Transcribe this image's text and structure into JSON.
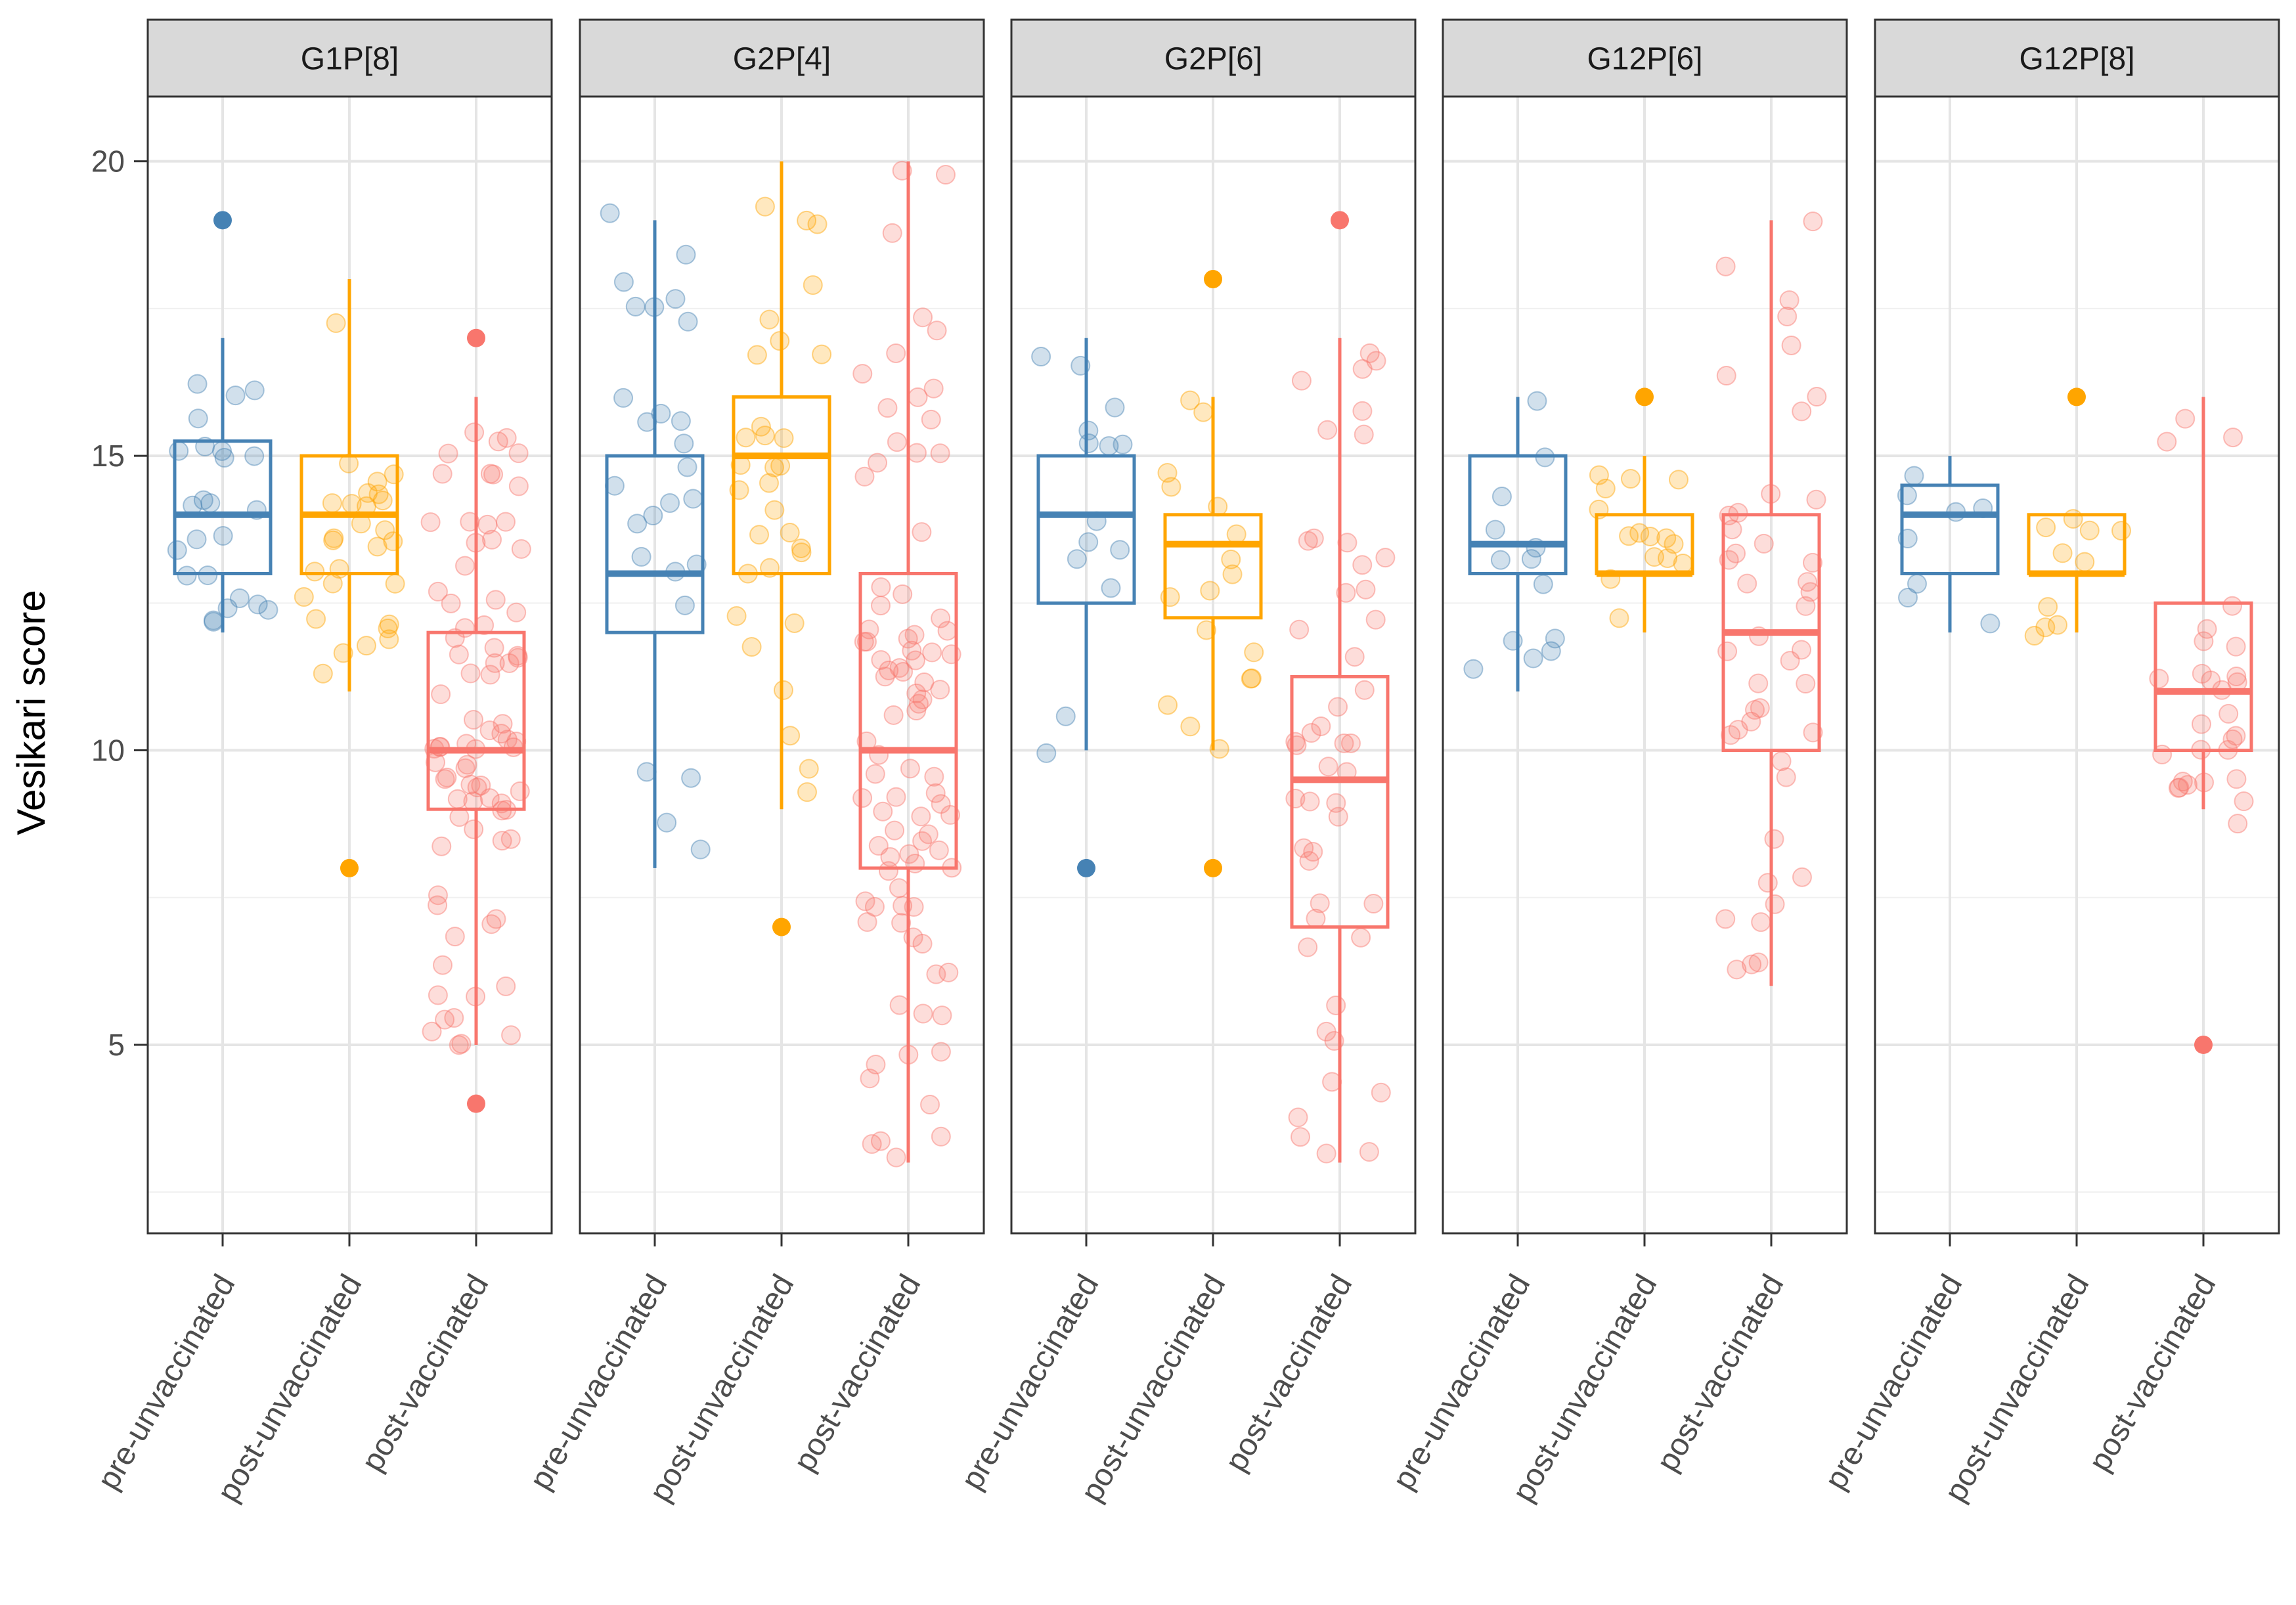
{
  "chart_data": {
    "type": "boxplot",
    "ylabel": "Vesikari score",
    "xlabel": "",
    "ylim": [
      1.8,
      21.1
    ],
    "y_ticks": [
      5,
      10,
      15,
      20
    ],
    "y_minor_ticks": [
      2.5,
      7.5,
      12.5,
      17.5
    ],
    "grid": true,
    "categories": [
      "pre-unvaccinated",
      "post-unvaccinated",
      "post-vaccinated"
    ],
    "colors": {
      "pre-unvaccinated": "#4682B4",
      "post-unvaccinated": "#FFA500",
      "post-vaccinated": "#F8766D"
    },
    "panels": [
      {
        "title": "G1P[8]",
        "boxes": [
          {
            "group": "pre-unvaccinated",
            "q1": 13,
            "median": 14,
            "q3": 15.25,
            "whisker_low": 12,
            "whisker_high": 17,
            "outliers": [
              19
            ]
          },
          {
            "group": "post-unvaccinated",
            "q1": 13,
            "median": 14,
            "q3": 15,
            "whisker_low": 11,
            "whisker_high": 18,
            "outliers": [
              8
            ]
          },
          {
            "group": "post-vaccinated",
            "q1": 9,
            "median": 10,
            "q3": 12,
            "whisker_low": 5,
            "whisker_high": 16,
            "outliers": [
              4,
              17
            ]
          }
        ]
      },
      {
        "title": "G2P[4]",
        "boxes": [
          {
            "group": "pre-unvaccinated",
            "q1": 12,
            "median": 13,
            "q3": 15,
            "whisker_low": 8,
            "whisker_high": 19,
            "outliers": []
          },
          {
            "group": "post-unvaccinated",
            "q1": 13,
            "median": 15,
            "q3": 16,
            "whisker_low": 9,
            "whisker_high": 20,
            "outliers": [
              7
            ]
          },
          {
            "group": "post-vaccinated",
            "q1": 8,
            "median": 10,
            "q3": 13,
            "whisker_low": 3,
            "whisker_high": 20,
            "outliers": []
          }
        ]
      },
      {
        "title": "G2P[6]",
        "boxes": [
          {
            "group": "pre-unvaccinated",
            "q1": 12.5,
            "median": 14,
            "q3": 15,
            "whisker_low": 10,
            "whisker_high": 17,
            "outliers": [
              8
            ]
          },
          {
            "group": "post-unvaccinated",
            "q1": 12.25,
            "median": 13.5,
            "q3": 14,
            "whisker_low": 10,
            "whisker_high": 16,
            "outliers": [
              8,
              18
            ]
          },
          {
            "group": "post-vaccinated",
            "q1": 7,
            "median": 9.5,
            "q3": 11.25,
            "whisker_low": 3,
            "whisker_high": 17,
            "outliers": [
              19
            ]
          }
        ]
      },
      {
        "title": "G12P[6]",
        "boxes": [
          {
            "group": "pre-unvaccinated",
            "q1": 13,
            "median": 13.5,
            "q3": 15,
            "whisker_low": 11,
            "whisker_high": 16,
            "outliers": []
          },
          {
            "group": "post-unvaccinated",
            "q1": 13,
            "median": 13,
            "q3": 14,
            "whisker_low": 12,
            "whisker_high": 15,
            "outliers": [
              16
            ]
          },
          {
            "group": "post-vaccinated",
            "q1": 10,
            "median": 12,
            "q3": 14,
            "whisker_low": 6,
            "whisker_high": 19,
            "outliers": []
          }
        ]
      },
      {
        "title": "G12P[8]",
        "boxes": [
          {
            "group": "pre-unvaccinated",
            "q1": 13,
            "median": 14,
            "q3": 14.5,
            "whisker_low": 12,
            "whisker_high": 15,
            "outliers": []
          },
          {
            "group": "post-unvaccinated",
            "q1": 13,
            "median": 13,
            "q3": 14,
            "whisker_low": 12,
            "whisker_high": 14,
            "outliers": [
              16
            ]
          },
          {
            "group": "post-vaccinated",
            "q1": 10,
            "median": 11,
            "q3": 12.5,
            "whisker_low": 9,
            "whisker_high": 16,
            "outliers": [
              5
            ]
          }
        ]
      }
    ],
    "jitter_points_note": "semi-transparent jittered raw observations overlaid on each box"
  }
}
